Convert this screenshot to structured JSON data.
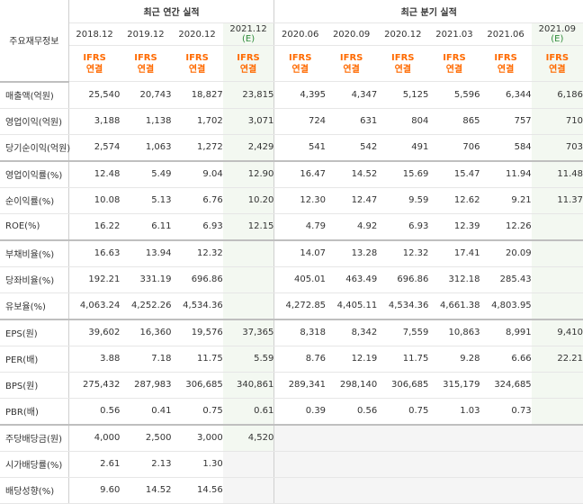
{
  "header": {
    "label_col": "주요재무정보",
    "annual_title": "최근 연간 실적",
    "quarter_title": "최근 분기 실적",
    "ifrs_line1": "IFRS",
    "ifrs_line2": "연결",
    "estimate_mark": "(E)"
  },
  "periods": [
    {
      "label": "2018.12",
      "estimate": false
    },
    {
      "label": "2019.12",
      "estimate": false
    },
    {
      "label": "2020.12",
      "estimate": false
    },
    {
      "label": "2021.12",
      "estimate": true
    },
    {
      "label": "2020.06",
      "estimate": false
    },
    {
      "label": "2020.09",
      "estimate": false
    },
    {
      "label": "2020.12",
      "estimate": false
    },
    {
      "label": "2021.03",
      "estimate": false
    },
    {
      "label": "2021.06",
      "estimate": false
    },
    {
      "label": "2021.09",
      "estimate": true
    }
  ],
  "rows": [
    {
      "label": "매출액(억원)",
      "values": [
        "25,540",
        "20,743",
        "18,827",
        "23,815",
        "4,395",
        "4,347",
        "5,125",
        "5,596",
        "6,344",
        "6,186"
      ]
    },
    {
      "label": "영업이익(억원)",
      "values": [
        "3,188",
        "1,138",
        "1,702",
        "3,071",
        "724",
        "631",
        "804",
        "865",
        "757",
        "710"
      ]
    },
    {
      "label": "당기순이익(억원)",
      "values": [
        "2,574",
        "1,063",
        "1,272",
        "2,429",
        "541",
        "542",
        "491",
        "706",
        "584",
        "703"
      ]
    },
    {
      "label": "영업이익률(%)",
      "values": [
        "12.48",
        "5.49",
        "9.04",
        "12.90",
        "16.47",
        "14.52",
        "15.69",
        "15.47",
        "11.94",
        "11.48"
      ]
    },
    {
      "label": "순이익률(%)",
      "values": [
        "10.08",
        "5.13",
        "6.76",
        "10.20",
        "12.30",
        "12.47",
        "9.59",
        "12.62",
        "9.21",
        "11.37"
      ]
    },
    {
      "label": "ROE(%)",
      "values": [
        "16.22",
        "6.11",
        "6.93",
        "12.15",
        "4.79",
        "4.92",
        "6.93",
        "12.39",
        "12.26",
        ""
      ]
    },
    {
      "label": "부채비율(%)",
      "values": [
        "16.63",
        "13.94",
        "12.32",
        "",
        "14.07",
        "13.28",
        "12.32",
        "17.41",
        "20.09",
        ""
      ]
    },
    {
      "label": "당좌비율(%)",
      "values": [
        "192.21",
        "331.19",
        "696.86",
        "",
        "405.01",
        "463.49",
        "696.86",
        "312.18",
        "285.43",
        ""
      ]
    },
    {
      "label": "유보율(%)",
      "values": [
        "4,063.24",
        "4,252.26",
        "4,534.36",
        "",
        "4,272.85",
        "4,405.11",
        "4,534.36",
        "4,661.38",
        "4,803.95",
        ""
      ]
    },
    {
      "label": "EPS(원)",
      "values": [
        "39,602",
        "16,360",
        "19,576",
        "37,365",
        "8,318",
        "8,342",
        "7,559",
        "10,863",
        "8,991",
        "9,410"
      ]
    },
    {
      "label": "PER(배)",
      "values": [
        "3.88",
        "7.18",
        "11.75",
        "5.59",
        "8.76",
        "12.19",
        "11.75",
        "9.28",
        "6.66",
        "22.21"
      ]
    },
    {
      "label": "BPS(원)",
      "values": [
        "275,432",
        "287,983",
        "306,685",
        "340,861",
        "289,341",
        "298,140",
        "306,685",
        "315,179",
        "324,685",
        ""
      ]
    },
    {
      "label": "PBR(배)",
      "values": [
        "0.56",
        "0.41",
        "0.75",
        "0.61",
        "0.39",
        "0.56",
        "0.75",
        "1.03",
        "0.73",
        ""
      ]
    },
    {
      "label": "주당배당금(원)",
      "values": [
        "4,000",
        "2,500",
        "3,000",
        "4,520",
        "",
        "",
        "",
        "",
        "",
        ""
      ]
    },
    {
      "label": "시가배당률(%)",
      "values": [
        "2.61",
        "2.13",
        "1.30",
        "",
        "",
        "",
        "",
        "",
        "",
        ""
      ]
    },
    {
      "label": "배당성향(%)",
      "values": [
        "9.60",
        "14.52",
        "14.56",
        "",
        "",
        "",
        "",
        "",
        "",
        ""
      ]
    }
  ]
}
